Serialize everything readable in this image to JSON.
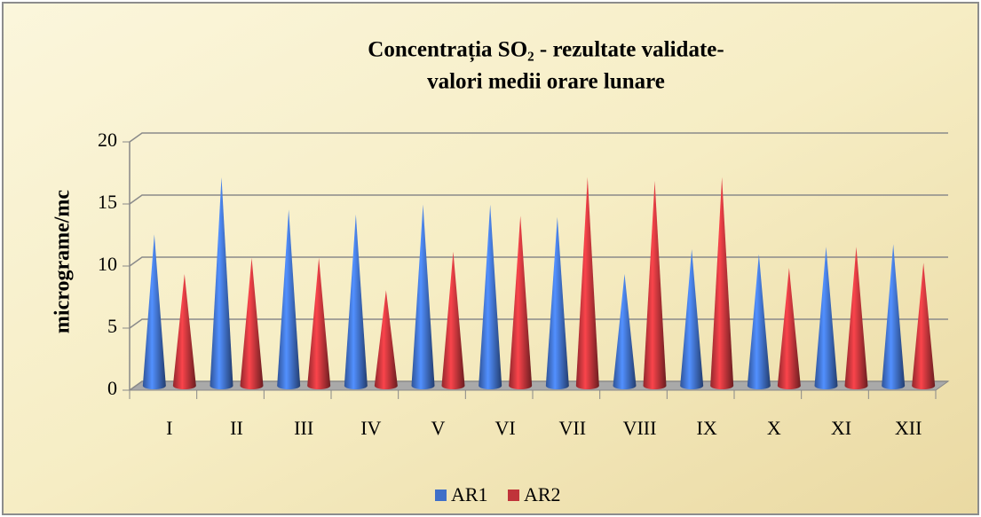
{
  "chart_data": {
    "type": "cone",
    "title": [
      "Concentrația SO₂ - rezultate validate-",
      "valori medii orare lunare"
    ],
    "y_label": "micrograme/mc",
    "categories": [
      "I",
      "II",
      "III",
      "IV",
      "V",
      "VI",
      "VII",
      "VIII",
      "IX",
      "X",
      "XI",
      "XII"
    ],
    "series": [
      {
        "name": "AR1",
        "color": "#3f6fc8",
        "values": [
          12.2,
          16.8,
          14.2,
          13.8,
          14.6,
          14.6,
          13.6,
          9.0,
          11.0,
          10.6,
          11.2,
          11.4
        ]
      },
      {
        "name": "AR2",
        "color": "#c0343a",
        "values": [
          9.0,
          10.3,
          10.3,
          7.7,
          10.8,
          13.7,
          16.8,
          16.5,
          16.8,
          9.5,
          11.2,
          9.9
        ]
      }
    ],
    "ylim": [
      0,
      20
    ],
    "yticks": [
      0,
      5,
      10,
      15,
      20
    ],
    "grid": true,
    "legend": "bottom"
  }
}
